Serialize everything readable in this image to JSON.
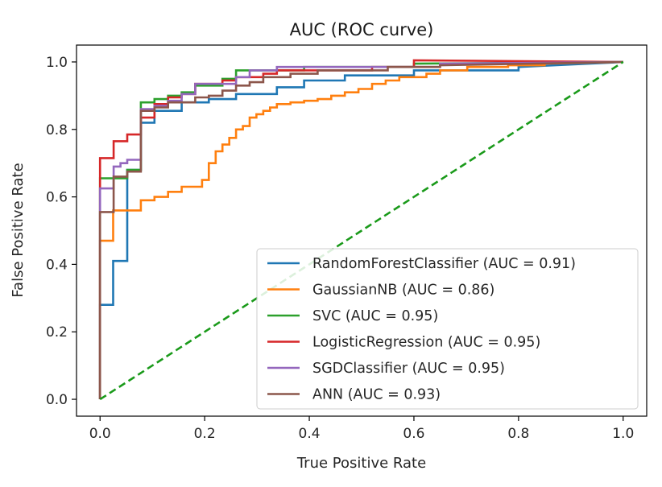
{
  "chart_data": {
    "type": "line",
    "title": "AUC (ROC curve)",
    "xlabel": "True Positive Rate",
    "ylabel": "False Positive Rate",
    "xlim": [
      -0.045,
      1.045
    ],
    "ylim": [
      -0.05,
      1.05
    ],
    "xticks": [
      "0.0",
      "0.2",
      "0.4",
      "0.6",
      "0.8",
      "1.0"
    ],
    "yticks": [
      "0.0",
      "0.2",
      "0.4",
      "0.6",
      "0.8",
      "1.0"
    ],
    "grid": false,
    "legend_position": "lower-right",
    "diagonal": {
      "color": "#1a9a1a",
      "style": "dashed",
      "points": [
        [
          0,
          0
        ],
        [
          1,
          1
        ]
      ]
    },
    "series": [
      {
        "name": "RandomForestClassifier (AUC = 0.91)",
        "color": "#1f77b4",
        "points": [
          [
            0,
            0
          ],
          [
            0,
            0.28
          ],
          [
            0.025,
            0.28
          ],
          [
            0.025,
            0.41
          ],
          [
            0.052,
            0.41
          ],
          [
            0.052,
            0.68
          ],
          [
            0.078,
            0.68
          ],
          [
            0.078,
            0.82
          ],
          [
            0.104,
            0.82
          ],
          [
            0.104,
            0.855
          ],
          [
            0.156,
            0.855
          ],
          [
            0.156,
            0.88
          ],
          [
            0.208,
            0.88
          ],
          [
            0.208,
            0.89
          ],
          [
            0.26,
            0.89
          ],
          [
            0.26,
            0.905
          ],
          [
            0.338,
            0.905
          ],
          [
            0.338,
            0.925
          ],
          [
            0.39,
            0.925
          ],
          [
            0.39,
            0.945
          ],
          [
            0.468,
            0.945
          ],
          [
            0.468,
            0.96
          ],
          [
            0.6,
            0.96
          ],
          [
            0.6,
            0.975
          ],
          [
            0.8,
            0.975
          ],
          [
            0.8,
            0.985
          ],
          [
            1,
            1
          ]
        ]
      },
      {
        "name": "GaussianNB (AUC = 0.86)",
        "color": "#ff7f0e",
        "points": [
          [
            0,
            0
          ],
          [
            0,
            0.47
          ],
          [
            0.025,
            0.47
          ],
          [
            0.025,
            0.56
          ],
          [
            0.078,
            0.56
          ],
          [
            0.078,
            0.59
          ],
          [
            0.104,
            0.59
          ],
          [
            0.104,
            0.6
          ],
          [
            0.13,
            0.6
          ],
          [
            0.13,
            0.615
          ],
          [
            0.156,
            0.615
          ],
          [
            0.156,
            0.63
          ],
          [
            0.195,
            0.63
          ],
          [
            0.195,
            0.65
          ],
          [
            0.208,
            0.65
          ],
          [
            0.208,
            0.7
          ],
          [
            0.221,
            0.7
          ],
          [
            0.221,
            0.735
          ],
          [
            0.234,
            0.735
          ],
          [
            0.234,
            0.755
          ],
          [
            0.247,
            0.755
          ],
          [
            0.247,
            0.775
          ],
          [
            0.26,
            0.775
          ],
          [
            0.26,
            0.8
          ],
          [
            0.273,
            0.8
          ],
          [
            0.273,
            0.81
          ],
          [
            0.286,
            0.81
          ],
          [
            0.286,
            0.835
          ],
          [
            0.299,
            0.835
          ],
          [
            0.299,
            0.845
          ],
          [
            0.312,
            0.845
          ],
          [
            0.312,
            0.855
          ],
          [
            0.325,
            0.855
          ],
          [
            0.325,
            0.865
          ],
          [
            0.338,
            0.865
          ],
          [
            0.338,
            0.875
          ],
          [
            0.364,
            0.875
          ],
          [
            0.364,
            0.88
          ],
          [
            0.39,
            0.88
          ],
          [
            0.39,
            0.885
          ],
          [
            0.416,
            0.885
          ],
          [
            0.416,
            0.89
          ],
          [
            0.442,
            0.89
          ],
          [
            0.442,
            0.9
          ],
          [
            0.468,
            0.9
          ],
          [
            0.468,
            0.91
          ],
          [
            0.494,
            0.91
          ],
          [
            0.494,
            0.92
          ],
          [
            0.52,
            0.92
          ],
          [
            0.52,
            0.935
          ],
          [
            0.546,
            0.935
          ],
          [
            0.546,
            0.945
          ],
          [
            0.572,
            0.945
          ],
          [
            0.572,
            0.955
          ],
          [
            0.624,
            0.955
          ],
          [
            0.624,
            0.965
          ],
          [
            0.65,
            0.965
          ],
          [
            0.65,
            0.975
          ],
          [
            0.702,
            0.975
          ],
          [
            0.702,
            0.985
          ],
          [
            0.78,
            0.985
          ],
          [
            0.78,
            0.99
          ],
          [
            0.85,
            0.99
          ],
          [
            0.85,
            0.995
          ],
          [
            1,
            1
          ]
        ]
      },
      {
        "name": "SVC (AUC = 0.95)",
        "color": "#2ca02c",
        "points": [
          [
            0,
            0
          ],
          [
            0,
            0.655
          ],
          [
            0.052,
            0.655
          ],
          [
            0.052,
            0.68
          ],
          [
            0.078,
            0.68
          ],
          [
            0.078,
            0.88
          ],
          [
            0.104,
            0.88
          ],
          [
            0.104,
            0.89
          ],
          [
            0.13,
            0.89
          ],
          [
            0.13,
            0.9
          ],
          [
            0.156,
            0.9
          ],
          [
            0.156,
            0.91
          ],
          [
            0.182,
            0.91
          ],
          [
            0.182,
            0.93
          ],
          [
            0.234,
            0.93
          ],
          [
            0.234,
            0.95
          ],
          [
            0.26,
            0.95
          ],
          [
            0.26,
            0.975
          ],
          [
            0.39,
            0.975
          ],
          [
            0.39,
            0.985
          ],
          [
            0.6,
            0.985
          ],
          [
            0.6,
            0.995
          ],
          [
            1,
            1
          ]
        ]
      },
      {
        "name": "LogisticRegression (AUC = 0.95)",
        "color": "#d62728",
        "points": [
          [
            0,
            0
          ],
          [
            0,
            0.715
          ],
          [
            0.026,
            0.715
          ],
          [
            0.026,
            0.765
          ],
          [
            0.052,
            0.765
          ],
          [
            0.052,
            0.785
          ],
          [
            0.078,
            0.785
          ],
          [
            0.078,
            0.835
          ],
          [
            0.104,
            0.835
          ],
          [
            0.104,
            0.875
          ],
          [
            0.13,
            0.875
          ],
          [
            0.13,
            0.895
          ],
          [
            0.156,
            0.895
          ],
          [
            0.156,
            0.905
          ],
          [
            0.182,
            0.905
          ],
          [
            0.182,
            0.935
          ],
          [
            0.234,
            0.935
          ],
          [
            0.234,
            0.945
          ],
          [
            0.26,
            0.945
          ],
          [
            0.26,
            0.955
          ],
          [
            0.312,
            0.955
          ],
          [
            0.312,
            0.965
          ],
          [
            0.338,
            0.965
          ],
          [
            0.338,
            0.975
          ],
          [
            0.52,
            0.975
          ],
          [
            0.52,
            0.985
          ],
          [
            0.6,
            0.985
          ],
          [
            0.6,
            1.005
          ],
          [
            1,
            1
          ]
        ]
      },
      {
        "name": "SGDClassifier (AUC = 0.95)",
        "color": "#9467bd",
        "points": [
          [
            0,
            0
          ],
          [
            0,
            0.625
          ],
          [
            0.026,
            0.625
          ],
          [
            0.026,
            0.69
          ],
          [
            0.039,
            0.69
          ],
          [
            0.039,
            0.7
          ],
          [
            0.052,
            0.7
          ],
          [
            0.052,
            0.71
          ],
          [
            0.078,
            0.71
          ],
          [
            0.078,
            0.86
          ],
          [
            0.104,
            0.86
          ],
          [
            0.104,
            0.87
          ],
          [
            0.13,
            0.87
          ],
          [
            0.13,
            0.885
          ],
          [
            0.156,
            0.885
          ],
          [
            0.156,
            0.905
          ],
          [
            0.182,
            0.905
          ],
          [
            0.182,
            0.935
          ],
          [
            0.26,
            0.935
          ],
          [
            0.26,
            0.955
          ],
          [
            0.286,
            0.955
          ],
          [
            0.286,
            0.975
          ],
          [
            0.338,
            0.975
          ],
          [
            0.338,
            0.985
          ],
          [
            0.65,
            0.985
          ],
          [
            0.65,
            0.995
          ],
          [
            1,
            1
          ]
        ]
      },
      {
        "name": "ANN (AUC = 0.93)",
        "color": "#8c564b",
        "points": [
          [
            0,
            0
          ],
          [
            0,
            0.555
          ],
          [
            0.026,
            0.555
          ],
          [
            0.026,
            0.66
          ],
          [
            0.052,
            0.66
          ],
          [
            0.052,
            0.675
          ],
          [
            0.078,
            0.675
          ],
          [
            0.078,
            0.855
          ],
          [
            0.104,
            0.855
          ],
          [
            0.104,
            0.865
          ],
          [
            0.13,
            0.865
          ],
          [
            0.13,
            0.88
          ],
          [
            0.182,
            0.88
          ],
          [
            0.182,
            0.895
          ],
          [
            0.208,
            0.895
          ],
          [
            0.208,
            0.9
          ],
          [
            0.234,
            0.9
          ],
          [
            0.234,
            0.915
          ],
          [
            0.26,
            0.915
          ],
          [
            0.26,
            0.93
          ],
          [
            0.286,
            0.93
          ],
          [
            0.286,
            0.94
          ],
          [
            0.312,
            0.94
          ],
          [
            0.312,
            0.955
          ],
          [
            0.364,
            0.955
          ],
          [
            0.364,
            0.965
          ],
          [
            0.416,
            0.965
          ],
          [
            0.416,
            0.975
          ],
          [
            0.55,
            0.975
          ],
          [
            0.55,
            0.985
          ],
          [
            0.65,
            0.985
          ],
          [
            0.65,
            0.99
          ],
          [
            1,
            1
          ]
        ]
      }
    ]
  }
}
